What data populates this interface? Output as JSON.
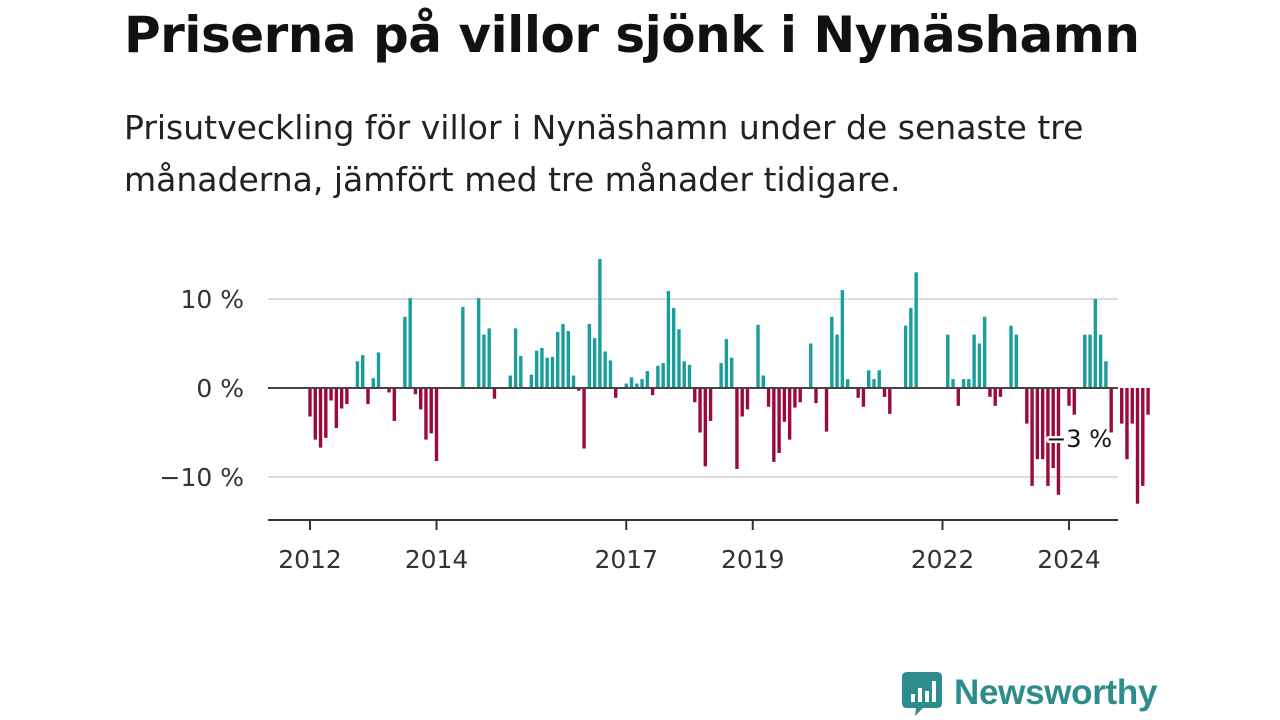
{
  "header": {
    "title": "Priserna på villor sjönk i Nynäshamn",
    "subtitle": "Prisutveckling för villor i Nynäshamn under de senaste tre månaderna, jämfört med tre månader tidigare."
  },
  "chart_data": {
    "type": "bar",
    "x_start": "2012-01",
    "x_end": "2024-06",
    "y_domain": [
      -15,
      15
    ],
    "y_ticks": [
      {
        "value": 10,
        "label": "10 %"
      },
      {
        "value": 0,
        "label": "0 %"
      },
      {
        "value": -10,
        "label": "−10 %"
      }
    ],
    "x_ticks": [
      {
        "value": 2012,
        "label": "2012"
      },
      {
        "value": 2014,
        "label": "2014"
      },
      {
        "value": 2017,
        "label": "2017"
      },
      {
        "value": 2019,
        "label": "2019"
      },
      {
        "value": 2022,
        "label": "2022"
      },
      {
        "value": 2024,
        "label": "2024"
      }
    ],
    "colors": {
      "positive": "#1a9e9c",
      "negative": "#9a0a3a",
      "grid": "#dddddd",
      "zero": "#444444",
      "axis": "#333333"
    },
    "values": [
      -3.2,
      -5.8,
      -6.7,
      -5.6,
      -1.4,
      -4.5,
      -2.3,
      -1.8,
      0,
      3,
      3.7,
      -1.8,
      1.1,
      4,
      0,
      -0.5,
      -3.7,
      0,
      8,
      10.1,
      -0.7,
      -2.4,
      -5.8,
      -5.1,
      -8.2,
      0,
      0,
      0,
      0,
      9.1,
      0,
      0,
      10.1,
      6,
      6.7,
      -1.2,
      0,
      0,
      1.4,
      6.7,
      3.6,
      0,
      1.5,
      4.2,
      4.5,
      3.4,
      3.5,
      6.3,
      7.2,
      6.4,
      1.4,
      -0.3,
      -6.8,
      7.2,
      5.6,
      14.5,
      4.1,
      3.1,
      -1.1,
      0,
      0.5,
      1.2,
      0.5,
      1,
      1.9,
      -0.8,
      2.5,
      2.8,
      10.9,
      9,
      6.6,
      3,
      2.6,
      -1.6,
      -5,
      -8.8,
      -3.7,
      0,
      2.8,
      5.5,
      3.4,
      -9.1,
      -3.2,
      -2.4,
      0,
      7.1,
      1.4,
      -2.1,
      -8.3,
      -7.3,
      -3.8,
      -5.8,
      -2.2,
      -1.6,
      0,
      5,
      -1.7,
      0,
      -4.9,
      8,
      6,
      11,
      1,
      0,
      -1.1,
      -2.1,
      2,
      1,
      2,
      -1,
      -2.9,
      0,
      0,
      7,
      9,
      13,
      0,
      0,
      0,
      0,
      0,
      6,
      1,
      -2,
      1,
      1,
      6,
      5,
      8,
      -1,
      -2,
      -1,
      0,
      7,
      6,
      0,
      -4,
      -11,
      -8,
      -8,
      -11,
      -9,
      -12,
      0,
      -2,
      -3,
      0,
      6,
      6,
      10,
      6,
      3,
      -5,
      0,
      -4,
      -8,
      -4,
      -13,
      -11,
      -3
    ],
    "annotation": "−3 %"
  },
  "brand": {
    "name": "Newsworthy",
    "color": "#2f8c8c"
  }
}
